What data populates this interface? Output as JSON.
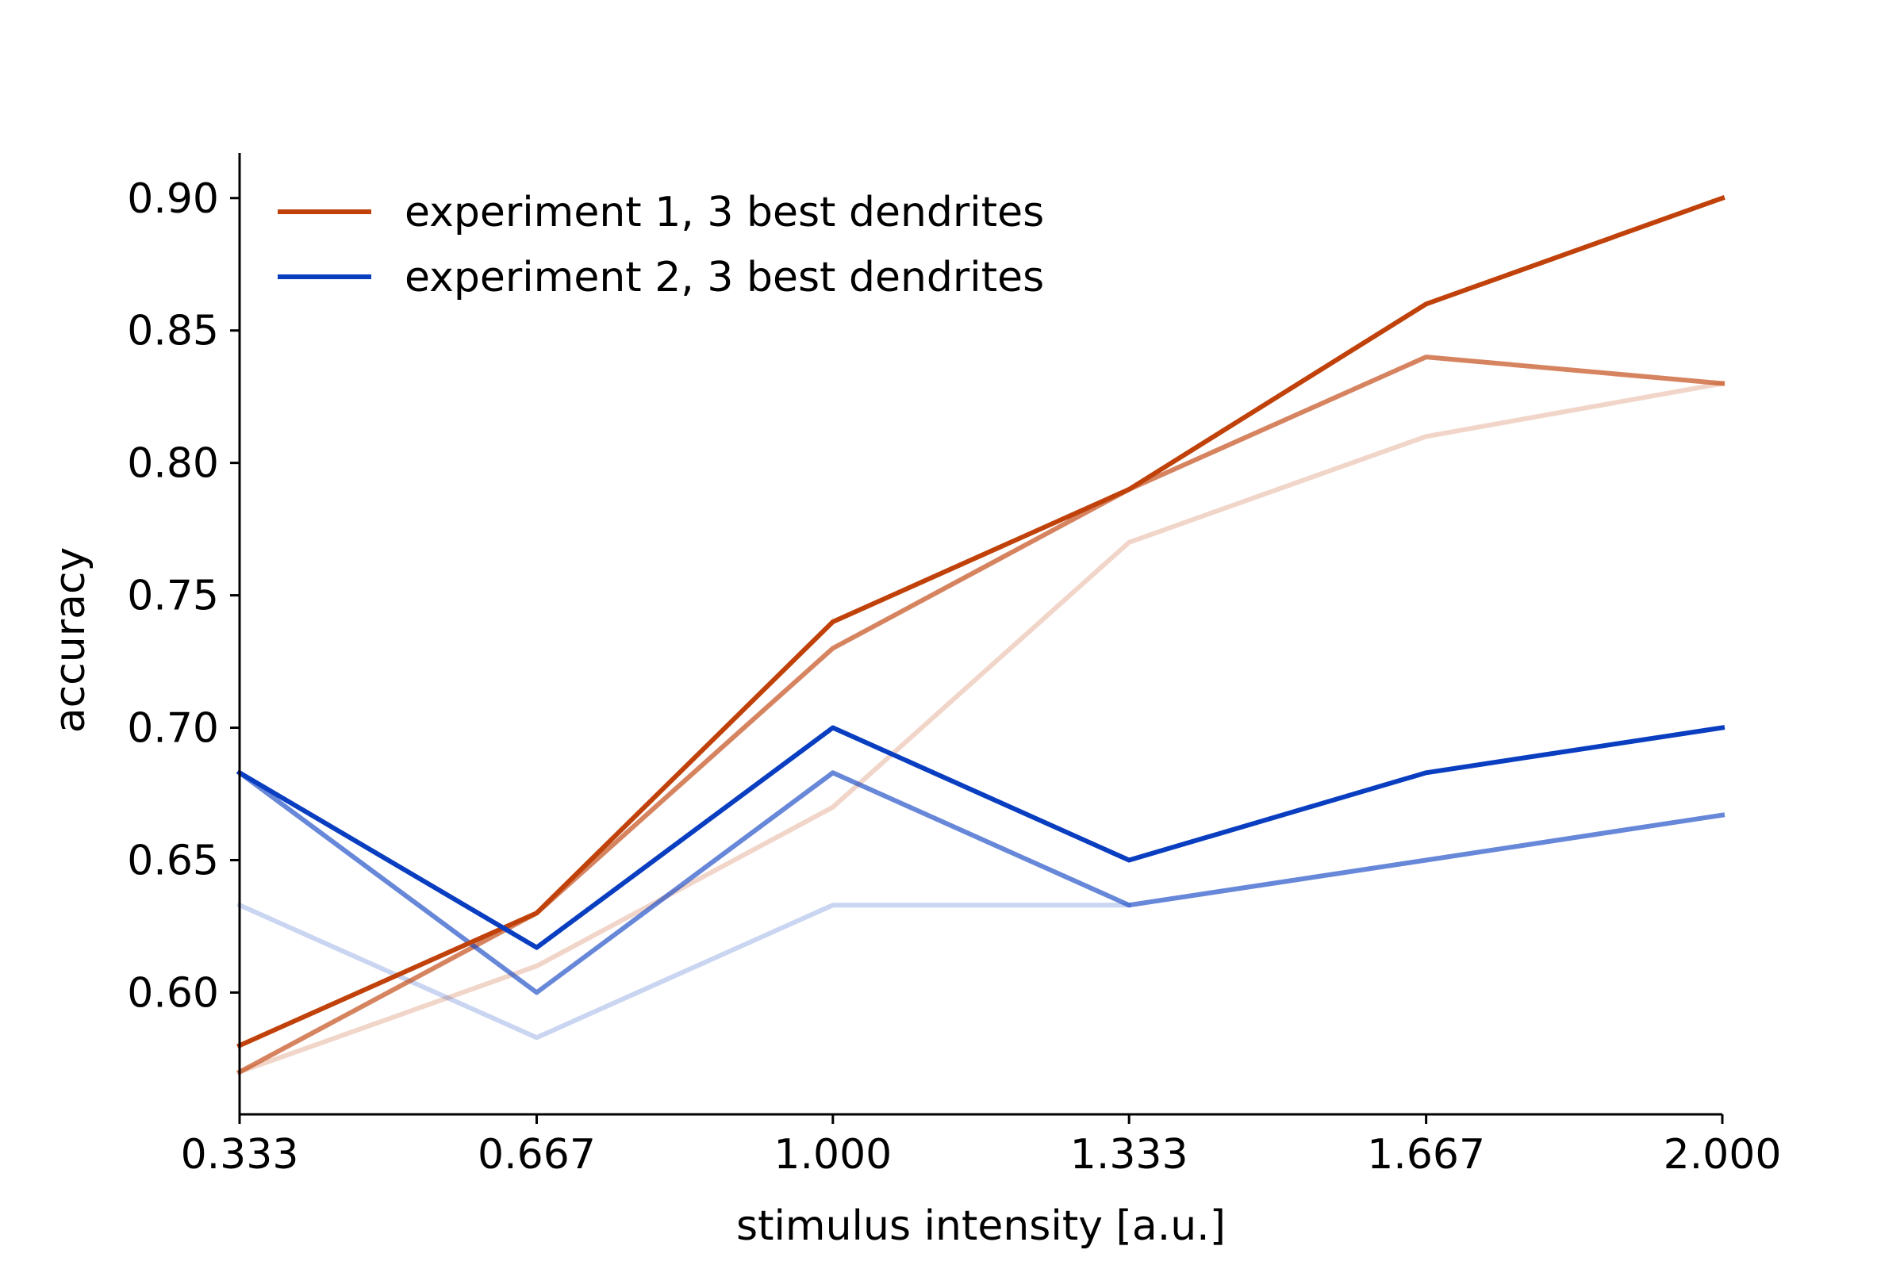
{
  "chart_data": {
    "type": "line",
    "title": "",
    "xlabel": "stimulus intensity [a.u.]",
    "ylabel": "accuracy",
    "x": [
      0.333,
      0.667,
      1.0,
      1.333,
      1.667,
      2.0
    ],
    "xtick_labels": [
      "0.333",
      "0.667",
      "1.000",
      "1.333",
      "1.667",
      "2.000"
    ],
    "yticks": [
      0.6,
      0.65,
      0.7,
      0.75,
      0.8,
      0.85,
      0.9
    ],
    "ytick_labels": [
      "0.60",
      "0.65",
      "0.70",
      "0.75",
      "0.80",
      "0.85",
      "0.90"
    ],
    "xlim": [
      0.333,
      2.0
    ],
    "ylim": [
      0.554,
      0.917
    ],
    "grid": false,
    "legend_position": "top-left",
    "series": [
      {
        "name": "experiment 1, 3 best dendrites",
        "color": "#c0420a",
        "opacity": 1.0,
        "values": [
          0.58,
          0.63,
          0.74,
          0.79,
          0.86,
          0.9
        ]
      },
      {
        "color": "#c0420a",
        "opacity": 0.65,
        "values": [
          0.57,
          0.63,
          0.73,
          0.79,
          0.84,
          0.83
        ]
      },
      {
        "color": "#c0420a",
        "opacity": 0.22,
        "values": [
          0.57,
          0.61,
          0.67,
          0.77,
          0.81,
          0.83
        ]
      },
      {
        "name": "experiment 2, 3 best dendrites",
        "color": "#0a3ec0",
        "opacity": 1.0,
        "values": [
          0.683,
          0.617,
          0.7,
          0.65,
          0.683,
          0.7
        ]
      },
      {
        "color": "#0a3ec0",
        "opacity": 0.62,
        "values": [
          0.683,
          0.6,
          0.683,
          0.633,
          0.65,
          0.667
        ]
      },
      {
        "color": "#0a3ec0",
        "opacity": 0.22,
        "values": [
          0.633,
          0.583,
          0.633,
          0.633,
          null,
          null
        ]
      }
    ]
  }
}
